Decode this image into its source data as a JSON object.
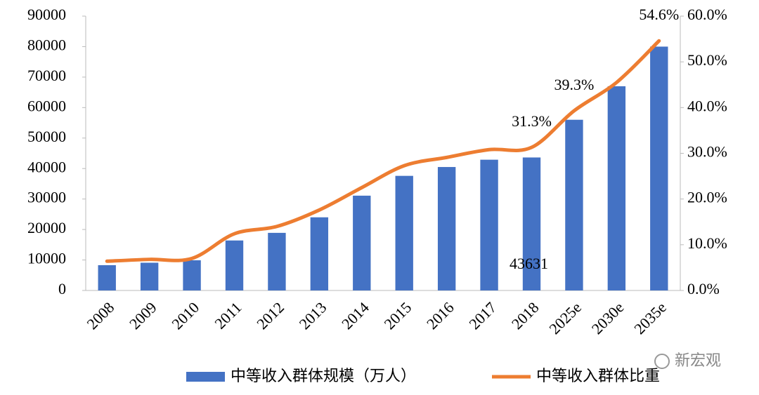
{
  "chart_data": {
    "type": "bar-line",
    "categories": [
      "2008",
      "2009",
      "2010",
      "2011",
      "2012",
      "2013",
      "2014",
      "2015",
      "2016",
      "2017",
      "2018",
      "2025e",
      "2030e",
      "2035e"
    ],
    "series": [
      {
        "name": "中等收入群体规模（万人）",
        "type": "bar",
        "color": "#4472c4",
        "values": [
          8300,
          9100,
          9900,
          16400,
          18900,
          24000,
          31100,
          37600,
          40500,
          42900,
          43631,
          56000,
          67000,
          80000
        ],
        "value_labels": [
          null,
          null,
          null,
          null,
          null,
          null,
          null,
          null,
          null,
          null,
          "43631",
          null,
          null,
          null
        ]
      },
      {
        "name": "中等收入群体比重",
        "type": "line",
        "axis": "y2",
        "color": "#ed7d31",
        "values": [
          6.4,
          6.8,
          7.0,
          12.4,
          14.0,
          17.6,
          22.5,
          27.3,
          29.1,
          30.8,
          31.3,
          39.3,
          45.5,
          54.6
        ],
        "value_labels": [
          null,
          null,
          null,
          null,
          null,
          null,
          null,
          null,
          null,
          null,
          "31.3%",
          "39.3%",
          null,
          "54.6%"
        ]
      }
    ],
    "ylim": [
      0,
      90000
    ],
    "yticks": [
      0,
      10000,
      20000,
      30000,
      40000,
      50000,
      60000,
      70000,
      80000,
      90000
    ],
    "y2lim": [
      0,
      60
    ],
    "y2ticks": [
      {
        "value": 0,
        "label": "0.0%"
      },
      {
        "value": 10,
        "label": "10.0%"
      },
      {
        "value": 20,
        "label": "20.0%"
      },
      {
        "value": 30,
        "label": "30.0%"
      },
      {
        "value": 40,
        "label": "40.0%"
      },
      {
        "value": 50,
        "label": "50.0%"
      },
      {
        "value": 60,
        "label": "60.0%"
      }
    ],
    "legend": "bottom",
    "watermark": "新宏观"
  }
}
